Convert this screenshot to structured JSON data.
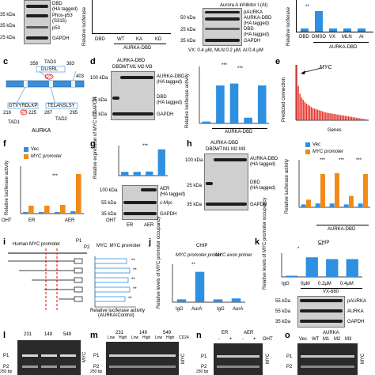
{
  "panels": {
    "a_top": {
      "markers": [
        "35 kDa",
        "35 kDa",
        "25 kDa"
      ],
      "labels": [
        "DBD",
        "(HA tagged)",
        "Phos-p53",
        "(S315)",
        "p53",
        "GAPDH"
      ]
    },
    "b_top": {
      "ylabel": "Relative luciferase",
      "categories": [
        "DBD",
        "WT",
        "KA",
        "KD"
      ],
      "group": "AURKA-DBD"
    },
    "d_top": {
      "markers": [
        "50 kDa",
        "25 kDa",
        "35 kDa"
      ],
      "header": "Aurora A inhibitor I (AI)",
      "labels": [
        "pAURKA",
        "AURKA-DBD",
        "(HA tagged)",
        "DBD",
        "(HA tagged)",
        "GAPDH"
      ],
      "doses": "VX: 0.4 μM, MLN:0.2 μM, AI:0.4 μM"
    },
    "e_top": {
      "ylabel": "Relative luciferase",
      "categories": [
        "DBD",
        "DMSO",
        "VX",
        "MLN",
        "AI"
      ],
      "group": "AURKA-DBD",
      "sig": "**"
    },
    "c": {
      "letter": "c",
      "labels": [
        "TAD3",
        "DLISRL",
        "358",
        "383",
        "403",
        "QS",
        "216",
        "TAD1",
        "GTVYRDLKP",
        "QS",
        "225",
        "TELANSLSY",
        "287",
        "295",
        "TAD2",
        "AURKA"
      ]
    },
    "d": {
      "letter": "d",
      "title": "AURKA-DBD",
      "lanes": [
        "DBD",
        "WT",
        "M1",
        "M2",
        "M3"
      ],
      "markers": [
        "100 kDa",
        "25 kDa",
        "35 kDa"
      ],
      "labels": [
        "AURKA-DBD",
        "(HA tagged)",
        "DBD",
        "(HA tagged)",
        "GAPDH"
      ],
      "ylabel": "Relative luciferase activity",
      "sig": [
        "***",
        "***"
      ],
      "group": "AURKA-DBD"
    },
    "e": {
      "letter": "e",
      "ylabel": "Predicted connection",
      "annotation": "MYC",
      "xlabel": "Genes"
    },
    "f": {
      "letter": "f",
      "legend": [
        "Vec",
        "MYC promoter"
      ],
      "ylabel": "Relative luciferase activity",
      "categories": [
        "ER",
        "AER"
      ],
      "treat": "OHT",
      "sig": "***"
    },
    "g": {
      "letter": "g",
      "ylabel": "Relative expression of MYC to GAPDH",
      "sig": "***",
      "markers": [
        "100 kDa",
        "55 kDa",
        "35 kDa"
      ],
      "labels": [
        "AER",
        "(HA tagged)",
        "c-Myc",
        "GAPDH"
      ],
      "lanes": [
        "ER",
        "AER"
      ],
      "treat": "OHT"
    },
    "h": {
      "letter": "h",
      "title": "AURKA-DBD",
      "lanes": [
        "DBD",
        "WT",
        "M1",
        "M2",
        "M3"
      ],
      "markers": [
        "100 kDa",
        "25 kDa",
        "35 kDa"
      ],
      "labels": [
        "AURKA-DBD",
        "(HA tagged)",
        "DBD",
        "(HA tagged)",
        "GAPDH"
      ]
    },
    "h2": {
      "legend": [
        "Vec",
        "MYC promoter"
      ],
      "ylabel": "Relative luciferase activity",
      "categories": [
        "DBD",
        "WT",
        "M1",
        "M2",
        "M3"
      ],
      "group": "AURKA-DBD",
      "sig": [
        "***",
        "***",
        "***"
      ]
    },
    "i": {
      "letter": "i",
      "title": "Human MYC promoter",
      "points": [
        "P1",
        "P2"
      ],
      "subtitle": "MYC: MYC promoter",
      "xlabel": "Relative luciferase activity",
      "xlabel2": "(AURKA/Control)",
      "sig": [
        "**",
        "**",
        "**",
        "**",
        "**"
      ]
    },
    "j": {
      "letter": "j",
      "title": "CHIP",
      "ylabel": "Relative levels of MYC promoter occupancy",
      "primers": [
        "MYC promoter primer",
        "MYC exon primer"
      ],
      "categories": [
        "IgG",
        "AurA",
        "IgG",
        "AurA"
      ],
      "sig": "**"
    },
    "k": {
      "letter": "k",
      "title": "CHIP",
      "ylabel": "Relative levels of MYC promoter occupancy",
      "drug": "VX-680",
      "categories": [
        "IgG",
        "0μM",
        "0.2μM",
        "0.4μM"
      ],
      "sig": [
        "*",
        "***"
      ],
      "markers": [
        "55 kDa",
        "55 kDa",
        "35 kDa"
      ],
      "labels": [
        "pAURKA",
        "AURKA",
        "GAPDH"
      ]
    },
    "l": {
      "letter": "l",
      "lines": [
        "231",
        "149",
        "549"
      ],
      "points": [
        "P1",
        "P2"
      ],
      "bp": "250 bp",
      "lane_label": "MYC"
    },
    "m": {
      "letter": "m",
      "lines": [
        "231",
        "149",
        "549"
      ],
      "levels": [
        "Low",
        "High",
        "Low",
        "High",
        "Low",
        "High"
      ],
      "tag": "CD24",
      "points": [
        "P1",
        "P2"
      ],
      "bp": "250 bp",
      "lane_label": "MYC"
    },
    "n": {
      "letter": "n",
      "groups": [
        "ER",
        "AER"
      ],
      "treat": "OHT",
      "signs": [
        "-",
        "+",
        "-",
        "+"
      ],
      "points": [
        "P1",
        "P2"
      ],
      "bp": "250 bp",
      "lane_label": "MYC"
    },
    "o": {
      "letter": "o",
      "title": "AURKA",
      "lanes": [
        "Vec",
        "WT",
        "M1",
        "M2",
        "M3"
      ],
      "points": [
        "P1",
        "P2"
      ],
      "lane_label": "MYC"
    }
  },
  "chart_data": [
    {
      "type": "bar",
      "panel": "d",
      "categories": [
        "DBD",
        "WT",
        "M1",
        "M2",
        "M3"
      ],
      "values": [
        0.5,
        10,
        10.5,
        1.5,
        10
      ],
      "ylabel": "Relative luciferase activity",
      "ylim": [
        0,
        15
      ]
    },
    {
      "type": "bar",
      "panel": "e",
      "values": [
        100,
        62,
        48,
        41,
        37,
        33,
        30,
        28,
        26,
        24,
        22,
        21,
        20,
        19,
        18,
        17,
        16,
        15,
        14,
        13.5,
        13,
        12.5,
        12,
        11.5,
        11,
        10.5,
        10,
        9.5,
        9,
        8.5,
        8,
        7.5,
        7,
        6.5,
        6,
        5.5,
        5,
        4.5,
        4,
        3.5,
        3,
        2.5,
        2,
        1.5,
        1
      ],
      "ylabel": "Predicted connection",
      "xlabel": "Genes",
      "ylim": [
        0,
        100
      ]
    },
    {
      "type": "bar",
      "panel": "f",
      "categories": [
        "ER -",
        "ER +",
        "AER -",
        "AER +"
      ],
      "series": [
        {
          "name": "Vec",
          "values": [
            0.2,
            0.2,
            0.2,
            0.3
          ]
        },
        {
          "name": "MYC promoter",
          "values": [
            1,
            1,
            1.1,
            5
          ]
        }
      ],
      "ylim": [
        0,
        6
      ]
    },
    {
      "type": "bar",
      "panel": "g",
      "categories": [
        "ER -",
        "ER +",
        "AER -",
        "AER +"
      ],
      "values": [
        1,
        1,
        1.1,
        7
      ],
      "ylabel": "Relative expression of MYC to GAPDH",
      "ylim": [
        0,
        8
      ]
    },
    {
      "type": "bar",
      "panel": "h2",
      "categories": [
        "DBD",
        "WT",
        "M1",
        "M2",
        "M3"
      ],
      "series": [
        {
          "name": "Vec",
          "values": [
            0.3,
            0.4,
            0.4,
            0.3,
            0.4
          ]
        },
        {
          "name": "MYC promoter",
          "values": [
            0.8,
            3.5,
            3.6,
            1.2,
            3.5
          ]
        }
      ],
      "ylim": [
        0,
        5
      ]
    },
    {
      "type": "bar",
      "panel": "j",
      "categories": [
        "IgG",
        "AurA",
        "IgG",
        "AurA"
      ],
      "values": [
        0.3,
        3.2,
        0.3,
        0.4
      ],
      "ylim": [
        0,
        4
      ]
    },
    {
      "type": "bar",
      "panel": "k",
      "categories": [
        "IgG",
        "0μM",
        "0.2μM",
        "0.4μM"
      ],
      "values": [
        0.2,
        3.3,
        3.0,
        3.0
      ],
      "ylim": [
        0,
        4
      ]
    }
  ]
}
